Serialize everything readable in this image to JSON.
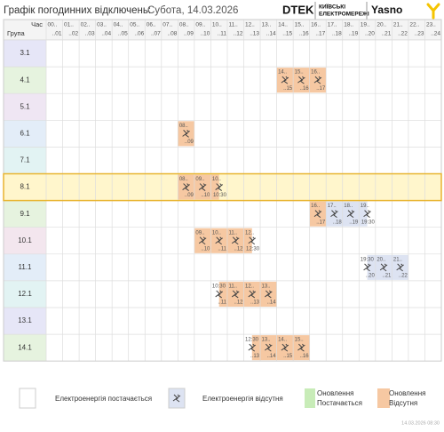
{
  "header": {
    "title": "Графік погодинних відключень:",
    "date": "Субота, 14.03.2026",
    "logo": {
      "brand": "DTEK",
      "line1": "КИЇВСЬКІ",
      "line2": "ЕЛЕКТРОМЕРЕЖІ",
      "partner": "Yasno"
    }
  },
  "table": {
    "corner_top": "Час",
    "corner_bottom": "Група",
    "hours": [
      {
        "from": "00..",
        "to": "..01"
      },
      {
        "from": "01..",
        "to": "..02"
      },
      {
        "from": "02..",
        "to": "..03"
      },
      {
        "from": "03..",
        "to": "..04"
      },
      {
        "from": "04..",
        "to": "..05"
      },
      {
        "from": "05..",
        "to": "..06"
      },
      {
        "from": "06..",
        "to": "..07"
      },
      {
        "from": "07..",
        "to": "..08"
      },
      {
        "from": "08..",
        "to": "..09"
      },
      {
        "from": "09..",
        "to": "..10"
      },
      {
        "from": "10..",
        "to": "..11"
      },
      {
        "from": "11..",
        "to": "..12"
      },
      {
        "from": "12..",
        "to": "..13"
      },
      {
        "from": "13..",
        "to": "..14"
      },
      {
        "from": "14..",
        "to": "..15"
      },
      {
        "from": "15..",
        "to": "..16"
      },
      {
        "from": "16..",
        "to": "..17"
      },
      {
        "from": "17..",
        "to": "..18"
      },
      {
        "from": "18..",
        "to": "..19"
      },
      {
        "from": "19..",
        "to": "..20"
      },
      {
        "from": "20..",
        "to": "..21"
      },
      {
        "from": "21..",
        "to": "..22"
      },
      {
        "from": "22..",
        "to": "..23"
      },
      {
        "from": "23..",
        "to": "..24"
      }
    ],
    "rows": [
      {
        "group": "3.1",
        "color": "#e6e6f7",
        "cells": []
      },
      {
        "group": "4.1",
        "color": "#e6f3df",
        "cells": [
          {
            "from": "14..",
            "to": "..15",
            "color": "#f6c8a2"
          },
          {
            "from": "15..",
            "to": "..16",
            "color": "#f6c8a2"
          },
          {
            "from": "16..",
            "to": "..17",
            "color": "#f6c8a2"
          }
        ]
      },
      {
        "group": "5.1",
        "color": "#efe6f3",
        "cells": []
      },
      {
        "group": "6.1",
        "color": "#e3edf8",
        "cells": [
          {
            "from": "08..",
            "to": "..09",
            "color": "#f6c8a2"
          }
        ]
      },
      {
        "group": "7.1",
        "color": "#e2f3f3",
        "cells": []
      },
      {
        "group": "8.1",
        "color": "#fff6cc",
        "highlight": true,
        "cells": [
          {
            "from": "08..",
            "to": "..09",
            "color": "#f6c8a2"
          },
          {
            "from": "09..",
            "to": "..10",
            "color": "#f6c8a2"
          },
          {
            "from": "10..",
            "to": "10:30",
            "color": "#f6c8a2"
          }
        ]
      },
      {
        "group": "9.1",
        "color": "#e6f3df",
        "cells": [
          {
            "from": "16..",
            "to": "..17",
            "color": "#f6c8a2"
          },
          {
            "from": "17..",
            "to": "..18",
            "color": "#dde3f2"
          },
          {
            "from": "18..",
            "to": "..19",
            "color": "#dde3f2"
          },
          {
            "from": "19..",
            "to": "19:30",
            "color": "#dde3f2"
          }
        ]
      },
      {
        "group": "10.1",
        "color": "#f3e6ee",
        "cells": [
          {
            "from": "09..",
            "to": "..10",
            "color": "#f6c8a2"
          },
          {
            "from": "10..",
            "to": "..11",
            "color": "#f6c8a2"
          },
          {
            "from": "11..",
            "to": "..12",
            "color": "#f6c8a2"
          },
          {
            "from": "12..",
            "to": "12:30",
            "color": "#f6c8a2"
          }
        ]
      },
      {
        "group": "11.1",
        "color": "#e3edf8",
        "cells": [
          {
            "from": "19:30",
            "to": "..20",
            "color": "#dde3f2"
          },
          {
            "from": "20..",
            "to": "..21",
            "color": "#dde3f2"
          },
          {
            "from": "21..",
            "to": "..22",
            "color": "#dde3f2"
          }
        ]
      },
      {
        "group": "12.1",
        "color": "#e2f3f3",
        "cells": [
          {
            "from": "10:30",
            "to": "..11",
            "color": "#f6c8a2"
          },
          {
            "from": "11..",
            "to": "..12",
            "color": "#f6c8a2"
          },
          {
            "from": "12..",
            "to": "..13",
            "color": "#f6c8a2"
          },
          {
            "from": "13..",
            "to": "..14",
            "color": "#f6c8a2"
          }
        ]
      },
      {
        "group": "13.1",
        "color": "#e6e6f7",
        "cells": []
      },
      {
        "group": "14.1",
        "color": "#e6f3df",
        "cells": [
          {
            "from": "12:30",
            "to": "..13",
            "color": "#f6c8a2"
          },
          {
            "from": "13..",
            "to": "..14",
            "color": "#f6c8a2"
          },
          {
            "from": "14..",
            "to": "..15",
            "color": "#f6c8a2"
          },
          {
            "from": "15..",
            "to": "..16",
            "color": "#f6c8a2"
          }
        ]
      }
    ]
  },
  "legend": [
    {
      "lines": [
        "Електроенергія постачається"
      ],
      "color": "#ffffff"
    },
    {
      "lines": [
        "Електроенергія відсутня"
      ],
      "color": "#dde3f2"
    },
    {
      "lines": [
        "Оновлення",
        "Постачається"
      ],
      "color": "#c8ecb8"
    },
    {
      "lines": [
        "Оновлення",
        "Відсутня"
      ],
      "color": "#f6c8a2"
    }
  ],
  "footer": {
    "timestamp": "14.03.2026 08:30"
  }
}
